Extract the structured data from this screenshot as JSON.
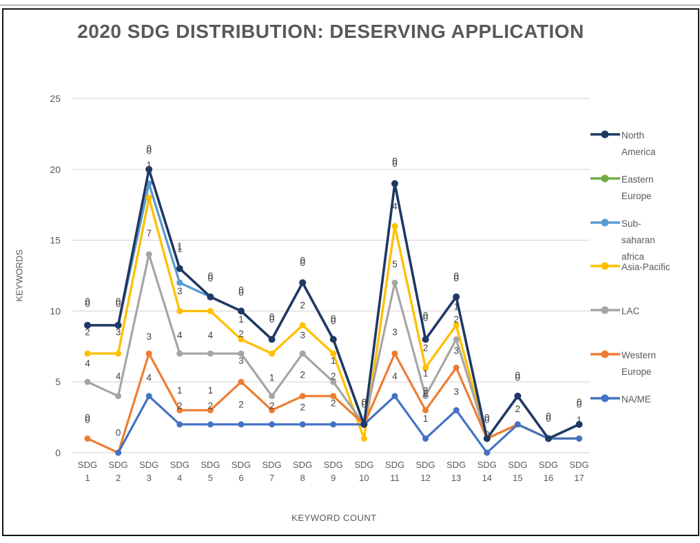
{
  "chart": {
    "title": "2020 SDG DISTRIBUTION: DESERVING APPLICATION",
    "y_axis": {
      "title": "KEYWORDS",
      "ticks": [
        0,
        5,
        10,
        15,
        20,
        25
      ],
      "max": 25
    },
    "x_axis": {
      "title": "KEYWORD COUNT"
    }
  },
  "chart_data": {
    "type": "line",
    "title": "2020 SDG DISTRIBUTION: DESERVING APPLICATION",
    "xlabel": "KEYWORD COUNT",
    "ylabel": "KEYWORDS",
    "ylim": [
      0,
      25
    ],
    "grid": true,
    "legend_position": "right",
    "categories": [
      "SDG 1",
      "SDG 2",
      "SDG 3",
      "SDG 4",
      "SDG 5",
      "SDG 6",
      "SDG 7",
      "SDG 8",
      "SDG 9",
      "SDG 10",
      "SDG 11",
      "SDG 12",
      "SDG 13",
      "SDG 14",
      "SDG 15",
      "SDG 16",
      "SDG 17"
    ],
    "series": [
      {
        "name": "North America",
        "color": "#1f3864",
        "marker_color": "#1f3864",
        "line_width": 3.6,
        "marker_r": 5,
        "values": [
          9,
          9,
          20,
          13,
          11,
          10,
          8,
          12,
          8,
          2,
          19,
          8,
          11,
          1,
          4,
          1,
          2
        ]
      },
      {
        "name": "Eastern Europe",
        "color": "#70ad47",
        "marker_color": "#70ad47",
        "line_width": 3.2,
        "marker_r": 4.5,
        "values": [
          9,
          9,
          19,
          12,
          11,
          10,
          8,
          12,
          8,
          2,
          19,
          8,
          11,
          1,
          4,
          1,
          2
        ]
      },
      {
        "name": "Sub-saharan africa",
        "color": "#5b9bd5",
        "marker_color": "#5b9bd5",
        "line_width": 3.2,
        "marker_r": 4.5,
        "values": [
          9,
          9,
          19,
          12,
          11,
          10,
          8,
          12,
          8,
          2,
          19,
          8,
          11,
          1,
          4,
          1,
          2
        ]
      },
      {
        "name": "Asia-Pacific",
        "color": "#ffc000",
        "marker_color": "#ffc000",
        "line_width": 3.4,
        "marker_r": 4.5,
        "values": [
          7,
          7,
          18,
          10,
          10,
          8,
          7,
          9,
          7,
          1,
          16,
          6,
          9,
          1,
          2,
          1,
          1
        ]
      },
      {
        "name": "LAC",
        "color": "#a5a5a5",
        "marker_color": "#a5a5a5",
        "line_width": 3.2,
        "marker_r": 4.5,
        "values": [
          5,
          4,
          14,
          7,
          7,
          7,
          4,
          7,
          5,
          2,
          12,
          4,
          8,
          1,
          2,
          1,
          1
        ]
      },
      {
        "name": "Western Europe",
        "color": "#ed7d31",
        "marker_color": "#ed7d31",
        "line_width": 3.2,
        "marker_r": 4.5,
        "values": [
          1,
          0,
          7,
          3,
          3,
          5,
          3,
          4,
          4,
          2,
          7,
          3,
          6,
          1,
          2,
          1,
          1
        ]
      },
      {
        "name": "NA/ME",
        "color": "#4472c4",
        "marker_color": "#4472c4",
        "line_width": 3.2,
        "marker_r": 4.5,
        "values": [
          null,
          0,
          4,
          2,
          2,
          2,
          2,
          2,
          2,
          2,
          4,
          1,
          3,
          0,
          2,
          1,
          1
        ]
      }
    ],
    "draw_order": [
      1,
      2,
      3,
      4,
      5,
      6,
      0
    ],
    "point_labels": [
      {
        "category_index": 1,
        "text": "0",
        "y_value": 10.5,
        "stacked": true
      },
      {
        "category_index": 1,
        "text": "2",
        "y_value": 8.5
      },
      {
        "category_index": 1,
        "text": "4",
        "y_value": 6.3
      },
      {
        "category_index": 1,
        "text": "0",
        "y_value": 2.3,
        "stacked": true
      },
      {
        "category_index": 2,
        "text": "0",
        "y_value": 10.5,
        "stacked": true
      },
      {
        "category_index": 2,
        "text": "3",
        "y_value": 8.5
      },
      {
        "category_index": 2,
        "text": "4",
        "y_value": 5.4
      },
      {
        "category_index": 2,
        "text": "0",
        "y_value": 1.4
      },
      {
        "category_index": 3,
        "text": "0",
        "y_value": 21.3,
        "stacked": true
      },
      {
        "category_index": 3,
        "text": "1",
        "y_value": 20.3
      },
      {
        "category_index": 3,
        "text": "7",
        "y_value": 15.5
      },
      {
        "category_index": 3,
        "text": "3",
        "y_value": 8.2
      },
      {
        "category_index": 3,
        "text": "4",
        "y_value": 5.3
      },
      {
        "category_index": 4,
        "text": "1",
        "y_value": 14.4,
        "stacked": true
      },
      {
        "category_index": 4,
        "text": "3",
        "y_value": 11.4
      },
      {
        "category_index": 4,
        "text": "4",
        "y_value": 8.3
      },
      {
        "category_index": 4,
        "text": "1",
        "y_value": 4.4
      },
      {
        "category_index": 4,
        "text": "2",
        "y_value": 3.3
      },
      {
        "category_index": 5,
        "text": "0",
        "y_value": 12.3,
        "stacked": true
      },
      {
        "category_index": 5,
        "text": "4",
        "y_value": 8.3
      },
      {
        "category_index": 5,
        "text": "1",
        "y_value": 4.4
      },
      {
        "category_index": 5,
        "text": "2",
        "y_value": 3.3
      },
      {
        "category_index": 6,
        "text": "0",
        "y_value": 11.3,
        "stacked": true
      },
      {
        "category_index": 6,
        "text": "1",
        "y_value": 9.4
      },
      {
        "category_index": 6,
        "text": "2",
        "y_value": 8.4
      },
      {
        "category_index": 6,
        "text": "3",
        "y_value": 6.5
      },
      {
        "category_index": 6,
        "text": "2",
        "y_value": 3.4
      },
      {
        "category_index": 7,
        "text": "0",
        "y_value": 9.4,
        "stacked": true
      },
      {
        "category_index": 7,
        "text": "1",
        "y_value": 5.3
      },
      {
        "category_index": 7,
        "text": "2",
        "y_value": 3.3
      },
      {
        "category_index": 8,
        "text": "0",
        "y_value": 13.4,
        "stacked": true
      },
      {
        "category_index": 8,
        "text": "2",
        "y_value": 10.4
      },
      {
        "category_index": 8,
        "text": "3",
        "y_value": 8.3
      },
      {
        "category_index": 8,
        "text": "2",
        "y_value": 5.5
      },
      {
        "category_index": 8,
        "text": "2",
        "y_value": 3.2
      },
      {
        "category_index": 9,
        "text": "0",
        "y_value": 9.3,
        "stacked": true
      },
      {
        "category_index": 9,
        "text": "1",
        "y_value": 6.5
      },
      {
        "category_index": 9,
        "text": "2",
        "y_value": 5.4
      },
      {
        "category_index": 9,
        "text": "2",
        "y_value": 3.5
      },
      {
        "category_index": 10,
        "text": "0",
        "y_value": 3.4,
        "stacked": true
      },
      {
        "category_index": 11,
        "text": "0",
        "y_value": 20.4,
        "stacked": true
      },
      {
        "category_index": 11,
        "text": "4",
        "y_value": 17.4
      },
      {
        "category_index": 11,
        "text": "5",
        "y_value": 13.3
      },
      {
        "category_index": 11,
        "text": "3",
        "y_value": 8.5
      },
      {
        "category_index": 11,
        "text": "4",
        "y_value": 5.4
      },
      {
        "category_index": 12,
        "text": "0",
        "y_value": 9.5,
        "stacked": true
      },
      {
        "category_index": 12,
        "text": "2",
        "y_value": 7.4
      },
      {
        "category_index": 12,
        "text": "1",
        "y_value": 5.6
      },
      {
        "category_index": 12,
        "text": "2",
        "y_value": 4.2,
        "stacked": true
      },
      {
        "category_index": 12,
        "text": "1",
        "y_value": 2.4
      },
      {
        "category_index": 13,
        "text": "0",
        "y_value": 12.3,
        "stacked": true
      },
      {
        "category_index": 13,
        "text": "1",
        "y_value": 10.3
      },
      {
        "category_index": 13,
        "text": "2",
        "y_value": 9.4
      },
      {
        "category_index": 13,
        "text": "3",
        "y_value": 7.2
      },
      {
        "category_index": 13,
        "text": "3",
        "y_value": 4.3
      },
      {
        "category_index": 14,
        "text": "0",
        "y_value": 2.3,
        "stacked": true
      },
      {
        "category_index": 14,
        "text": "0",
        "y_value": 1.3
      },
      {
        "category_index": 15,
        "text": "0",
        "y_value": 5.3,
        "stacked": true
      },
      {
        "category_index": 15,
        "text": "2",
        "y_value": 3.1
      },
      {
        "category_index": 16,
        "text": "0",
        "y_value": 2.4,
        "stacked": true
      },
      {
        "category_index": 17,
        "text": "0",
        "y_value": 3.4,
        "stacked": true
      },
      {
        "category_index": 17,
        "text": "1",
        "y_value": 2.3
      }
    ]
  },
  "legend": {
    "items": [
      {
        "label": "North America",
        "display_lines": [
          "North",
          "America"
        ],
        "color": "#1f3864"
      },
      {
        "label": "Eastern Europe",
        "display_lines": [
          "Eastern",
          "Europe"
        ],
        "color": "#70ad47"
      },
      {
        "label": "Sub-saharan africa",
        "display_lines": [
          "Sub-",
          "saharan",
          "africa"
        ],
        "color": "#5b9bd5"
      },
      {
        "label": "Asia-Pacific",
        "display_lines": [
          "Asia-Pacific"
        ],
        "color": "#ffc000"
      },
      {
        "label": "LAC",
        "display_lines": [
          "LAC"
        ],
        "color": "#a5a5a5"
      },
      {
        "label": "Western Europe",
        "display_lines": [
          "Western",
          "Europe"
        ],
        "color": "#ed7d31"
      },
      {
        "label": "NA/ME",
        "display_lines": [
          "NA/ME"
        ],
        "color": "#4472c4"
      }
    ]
  },
  "colors": {
    "gridline": "#d9d9d9",
    "axis_text": "#595959",
    "data_label": "#3f3f3f",
    "title_text": "#595959"
  }
}
